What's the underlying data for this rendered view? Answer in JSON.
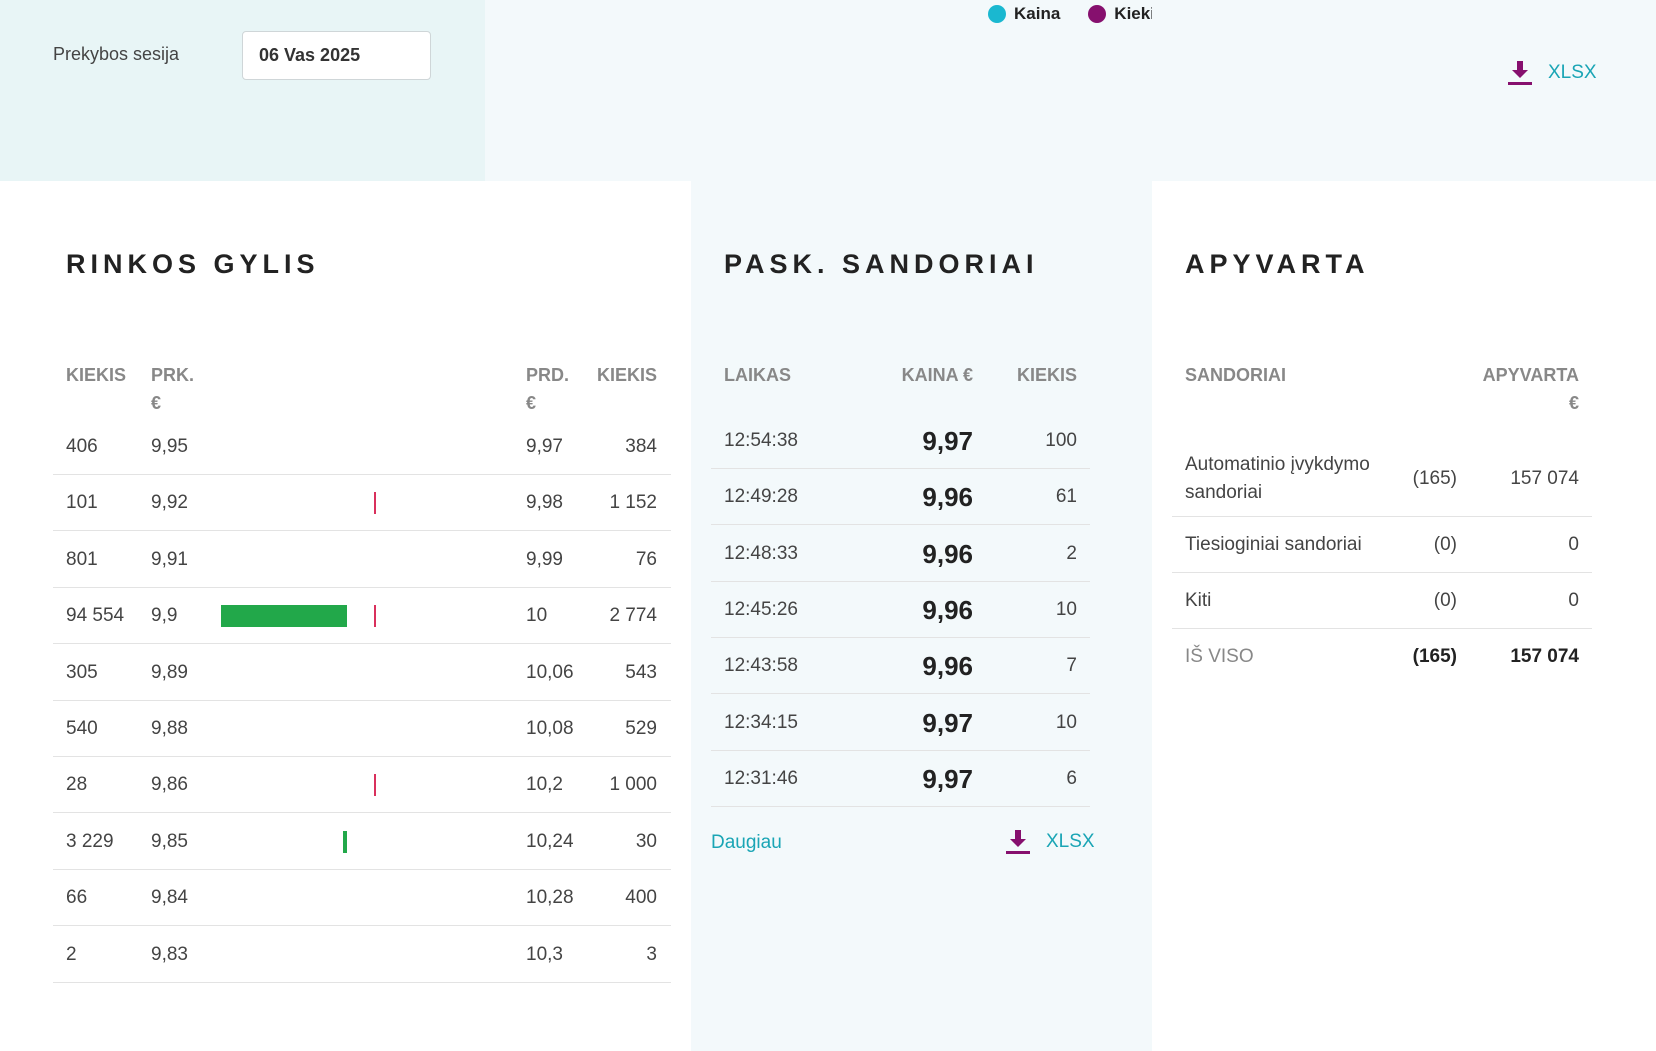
{
  "session": {
    "label": "Prekybos sesija",
    "value": "06 Vas 2025"
  },
  "legend": [
    {
      "label": "Kaina",
      "color": "#1ab8d0"
    },
    {
      "label": "Kiekis",
      "color": "#86106e"
    }
  ],
  "export_label": "XLSX",
  "depth": {
    "title": "RINKOS GYLIS",
    "headers": {
      "bid_qty": "KIEKIS",
      "bid_price_1": "PRK.",
      "bid_price_2": "€",
      "ask_price_1": "PRD.",
      "ask_price_2": "€",
      "ask_qty": "KIEKIS"
    },
    "rows": [
      {
        "bid_qty": "406",
        "bid_price": "9,95",
        "ask_price": "9,97",
        "ask_qty": "384"
      },
      {
        "bid_qty": "101",
        "bid_price": "9,92",
        "ask_price": "9,98",
        "ask_qty": "1 152"
      },
      {
        "bid_qty": "801",
        "bid_price": "9,91",
        "ask_price": "9,99",
        "ask_qty": "76"
      },
      {
        "bid_qty": "94 554",
        "bid_price": "9,9",
        "ask_price": "10",
        "ask_qty": "2 774"
      },
      {
        "bid_qty": "305",
        "bid_price": "9,89",
        "ask_price": "10,06",
        "ask_qty": "543"
      },
      {
        "bid_qty": "540",
        "bid_price": "9,88",
        "ask_price": "10,08",
        "ask_qty": "529"
      },
      {
        "bid_qty": "28",
        "bid_price": "9,86",
        "ask_price": "10,2",
        "ask_qty": "1 000"
      },
      {
        "bid_qty": "3 229",
        "bid_price": "9,85",
        "ask_price": "10,24",
        "ask_qty": "30"
      },
      {
        "bid_qty": "66",
        "bid_price": "9,84",
        "ask_price": "10,28",
        "ask_qty": "400"
      },
      {
        "bid_qty": "2",
        "bid_price": "9,83",
        "ask_price": "10,3",
        "ask_qty": "3"
      }
    ]
  },
  "trades": {
    "title": "PASK. SANDORIAI",
    "headers": {
      "time": "LAIKAS",
      "price": "KAINA €",
      "qty": "KIEKIS"
    },
    "rows": [
      {
        "time": "12:54:38",
        "price": "9,97",
        "qty": "100"
      },
      {
        "time": "12:49:28",
        "price": "9,96",
        "qty": "61"
      },
      {
        "time": "12:48:33",
        "price": "9,96",
        "qty": "2"
      },
      {
        "time": "12:45:26",
        "price": "9,96",
        "qty": "10"
      },
      {
        "time": "12:43:58",
        "price": "9,96",
        "qty": "7"
      },
      {
        "time": "12:34:15",
        "price": "9,97",
        "qty": "10"
      },
      {
        "time": "12:31:46",
        "price": "9,97",
        "qty": "6"
      }
    ],
    "more_label": "Daugiau"
  },
  "turnover": {
    "title": "APYVARTA",
    "headers": {
      "deals": "SANDORIAI",
      "turnover_1": "APYVARTA",
      "turnover_2": "€"
    },
    "rows": [
      {
        "name_1": "Automatinio įvykdymo",
        "name_2": "sandoriai",
        "count": "(165)",
        "value": "157 074"
      },
      {
        "name_1": "Tiesioginiai sandoriai",
        "count": "(0)",
        "value": "0"
      },
      {
        "name_1": "Kiti",
        "count": "(0)",
        "value": "0"
      },
      {
        "name_1": "IŠ VISO",
        "count": "(165)",
        "value": "157 074"
      }
    ]
  }
}
